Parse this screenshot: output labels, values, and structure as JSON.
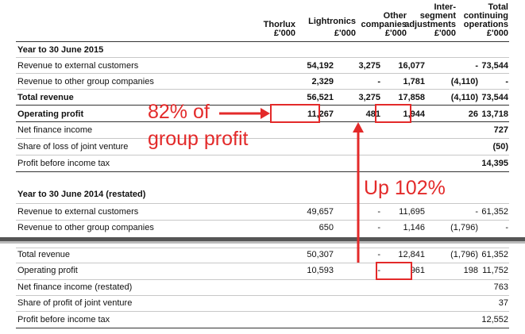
{
  "columns": [
    {
      "name": "Thorlux",
      "unit": "£'000"
    },
    {
      "name": "Lightronics",
      "unit": "£'000"
    },
    {
      "name": "Other companies",
      "unit": "£'000"
    },
    {
      "name": "Inter-segment adjustments",
      "unit": "£'000"
    },
    {
      "name": "Total continuing operations",
      "unit": "£'000"
    }
  ],
  "header_lines": {
    "c1": [
      "Thorlux",
      "£'000"
    ],
    "c2": [
      "Lightronics",
      "£'000"
    ],
    "c3": [
      "Other",
      "companies",
      "£'000"
    ],
    "c4": [
      "Inter-",
      "segment",
      "adjustments",
      "£'000"
    ],
    "c5": [
      "Total",
      "continuing",
      "operations",
      "£'000"
    ]
  },
  "section_2015": {
    "title": "Year to 30 June 2015",
    "rows": [
      {
        "label": "Revenue to external customers",
        "values": [
          "54,192",
          "3,275",
          "16,077",
          "-",
          "73,544"
        ]
      },
      {
        "label": "Revenue to other group companies",
        "values": [
          "2,329",
          "-",
          "1,781",
          "(4,110)",
          "-"
        ]
      },
      {
        "label": "Total revenue",
        "values": [
          "56,521",
          "3,275",
          "17,858",
          "(4,110)",
          "73,544"
        ]
      },
      {
        "label": "Operating profit",
        "values": [
          "11,267",
          "481",
          "1,944",
          "26",
          "13,718"
        ]
      },
      {
        "label": "Net finance income",
        "values": [
          "",
          "",
          "",
          "",
          "727"
        ]
      },
      {
        "label": "Share of loss of joint venture",
        "values": [
          "",
          "",
          "",
          "",
          "(50)"
        ]
      },
      {
        "label": "Profit before income tax",
        "values": [
          "",
          "",
          "",
          "",
          "14,395"
        ]
      }
    ]
  },
  "section_2014": {
    "title": "Year to 30 June 2014 (restated)",
    "rows": [
      {
        "label": "Revenue to external customers",
        "values": [
          "49,657",
          "-",
          "11,695",
          "-",
          "61,352"
        ]
      },
      {
        "label": "Revenue to other group companies",
        "values": [
          "650",
          "-",
          "1,146",
          "(1,796)",
          "-"
        ]
      },
      {
        "label": "Total revenue",
        "values": [
          "50,307",
          "-",
          "12,841",
          "(1,796)",
          "61,352"
        ]
      },
      {
        "label": "Operating profit",
        "values": [
          "10,593",
          "-",
          "961",
          "198",
          "11,752"
        ]
      },
      {
        "label": "Net finance income (restated)",
        "values": [
          "",
          "",
          "",
          "",
          "763"
        ]
      },
      {
        "label": "Share of profit of joint venture",
        "values": [
          "",
          "",
          "",
          "",
          "37"
        ]
      },
      {
        "label": "Profit before income tax",
        "values": [
          "",
          "",
          "",
          "",
          "12,552"
        ]
      }
    ]
  },
  "annotations": {
    "left_line1": "82% of",
    "left_line2": "group profit",
    "growth": "Up 102%",
    "color": "#e32a2a"
  }
}
